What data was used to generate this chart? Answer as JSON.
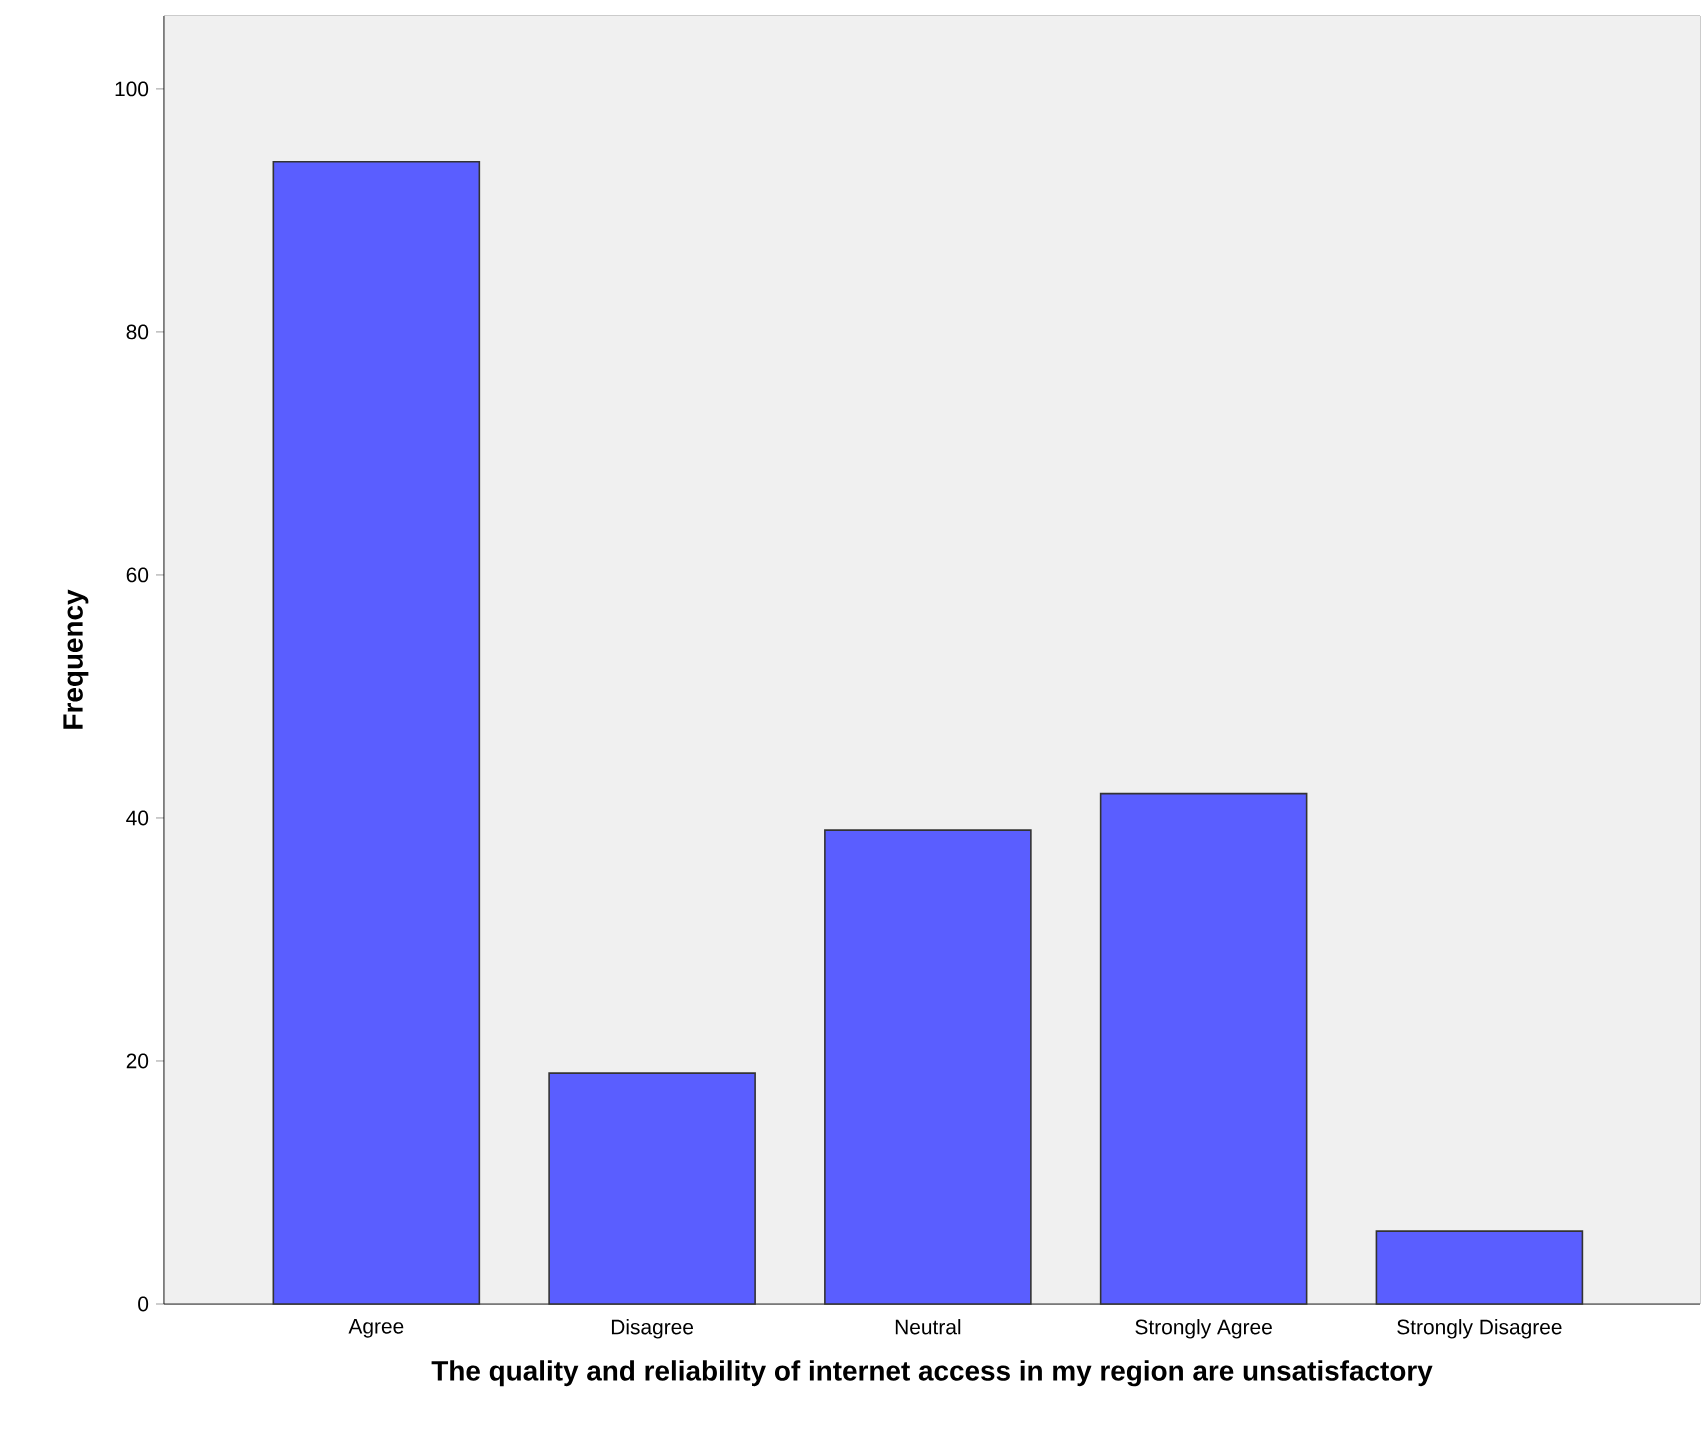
{
  "chart_data": {
    "type": "bar",
    "xlabel": "The quality and reliability of internet access in my region are unsatisfactory",
    "ylabel": "Frequency",
    "categories": [
      "Agree",
      "Disagree",
      "Neutral",
      "Strongly Agree",
      "Strongly Disagree"
    ],
    "values": [
      94,
      19,
      39,
      42,
      6
    ],
    "color": "#5a5eff",
    "ylim": [
      0,
      106
    ],
    "yticks": [
      0,
      20,
      40,
      60,
      80,
      100
    ],
    "grid": false
  }
}
